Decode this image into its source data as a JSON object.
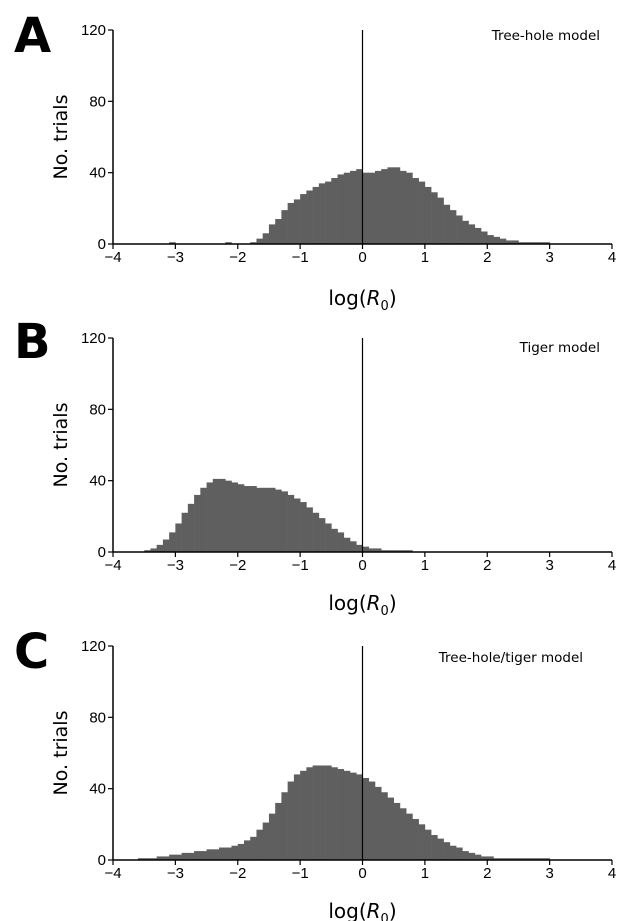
{
  "chart_data": [
    {
      "type": "bar",
      "panel_label": "A",
      "annotation": "Tree-hole model",
      "xlabel": {
        "prefix": "log(",
        "var": "R",
        "sub": "0",
        "suffix": ")"
      },
      "ylabel": "No. trials",
      "xlim": [
        -4,
        4
      ],
      "ylim": [
        0,
        120
      ],
      "xticks": [
        -4,
        -3,
        -2,
        -1,
        0,
        1,
        2,
        3,
        4
      ],
      "xtick_labels": [
        "−4",
        "−3",
        "−2",
        "−1",
        "0",
        "1",
        "2",
        "3",
        "4"
      ],
      "yticks": [
        0,
        40,
        80,
        120
      ],
      "ytick_labels": [
        "0",
        "40",
        "80",
        "120"
      ],
      "bar_color": "#5f5f5f",
      "bin_width": 0.1,
      "bin_centers": [
        -3.05,
        -2.15,
        -1.75,
        -1.65,
        -1.55,
        -1.45,
        -1.35,
        -1.25,
        -1.15,
        -1.05,
        -0.95,
        -0.85,
        -0.75,
        -0.65,
        -0.55,
        -0.45,
        -0.35,
        -0.25,
        -0.15,
        -0.05,
        0.05,
        0.15,
        0.25,
        0.35,
        0.45,
        0.55,
        0.65,
        0.75,
        0.85,
        0.95,
        1.05,
        1.15,
        1.25,
        1.35,
        1.45,
        1.55,
        1.65,
        1.75,
        1.85,
        1.95,
        2.05,
        2.15,
        2.25,
        2.35,
        2.45,
        2.55,
        2.65,
        2.75,
        2.85,
        2.95
      ],
      "values": [
        1,
        1,
        1,
        3,
        6,
        11,
        14,
        19,
        23,
        25,
        28,
        30,
        32,
        34,
        35,
        37,
        39,
        40,
        41,
        42,
        40,
        40,
        41,
        42,
        43,
        43,
        41,
        40,
        37,
        35,
        32,
        29,
        26,
        22,
        19,
        16,
        13,
        11,
        9,
        7,
        5,
        4,
        3,
        2,
        2,
        1,
        1,
        1,
        1,
        1
      ],
      "reference_line_x": 0
    },
    {
      "type": "bar",
      "panel_label": "B",
      "annotation": "Tiger model",
      "xlabel": {
        "prefix": "log(",
        "var": "R",
        "sub": "0",
        "suffix": ")"
      },
      "ylabel": "No. trials",
      "xlim": [
        -4,
        4
      ],
      "ylim": [
        0,
        120
      ],
      "xticks": [
        -4,
        -3,
        -2,
        -1,
        0,
        1,
        2,
        3,
        4
      ],
      "xtick_labels": [
        "−4",
        "−3",
        "−2",
        "−1",
        "0",
        "1",
        "2",
        "3",
        "4"
      ],
      "yticks": [
        0,
        40,
        80,
        120
      ],
      "ytick_labels": [
        "0",
        "40",
        "80",
        "120"
      ],
      "bar_color": "#5f5f5f",
      "bin_width": 0.1,
      "bin_centers": [
        -3.45,
        -3.35,
        -3.25,
        -3.15,
        -3.05,
        -2.95,
        -2.85,
        -2.75,
        -2.65,
        -2.55,
        -2.45,
        -2.35,
        -2.25,
        -2.15,
        -2.05,
        -1.95,
        -1.85,
        -1.75,
        -1.65,
        -1.55,
        -1.45,
        -1.35,
        -1.25,
        -1.15,
        -1.05,
        -0.95,
        -0.85,
        -0.75,
        -0.65,
        -0.55,
        -0.45,
        -0.35,
        -0.25,
        -0.15,
        -0.05,
        0.05,
        0.15,
        0.25,
        0.35,
        0.45,
        0.55,
        0.65,
        0.75
      ],
      "values": [
        1,
        2,
        4,
        7,
        11,
        16,
        22,
        27,
        32,
        36,
        39,
        41,
        41,
        40,
        39,
        38,
        37,
        37,
        36,
        36,
        36,
        35,
        34,
        32,
        30,
        28,
        25,
        22,
        19,
        16,
        13,
        11,
        8,
        6,
        4,
        3,
        2,
        2,
        1,
        1,
        1,
        1,
        1
      ],
      "reference_line_x": 0
    },
    {
      "type": "bar",
      "panel_label": "C",
      "annotation": "Tree-hole/tiger model",
      "xlabel": {
        "prefix": "log(",
        "var": "R",
        "sub": "0",
        "suffix": ")"
      },
      "ylabel": "No. trials",
      "xlim": [
        -4,
        4
      ],
      "ylim": [
        0,
        120
      ],
      "xticks": [
        -4,
        -3,
        -2,
        -1,
        0,
        1,
        2,
        3,
        4
      ],
      "xtick_labels": [
        "−4",
        "−3",
        "−2",
        "−1",
        "0",
        "1",
        "2",
        "3",
        "4"
      ],
      "yticks": [
        0,
        40,
        80,
        120
      ],
      "ytick_labels": [
        "0",
        "40",
        "80",
        "120"
      ],
      "bar_color": "#5f5f5f",
      "bin_width": 0.1,
      "bin_centers": [
        -3.55,
        -3.45,
        -3.35,
        -3.25,
        -3.15,
        -3.05,
        -2.95,
        -2.85,
        -2.75,
        -2.65,
        -2.55,
        -2.45,
        -2.35,
        -2.25,
        -2.15,
        -2.05,
        -1.95,
        -1.85,
        -1.75,
        -1.65,
        -1.55,
        -1.45,
        -1.35,
        -1.25,
        -1.15,
        -1.05,
        -0.95,
        -0.85,
        -0.75,
        -0.65,
        -0.55,
        -0.45,
        -0.35,
        -0.25,
        -0.15,
        -0.05,
        0.05,
        0.15,
        0.25,
        0.35,
        0.45,
        0.55,
        0.65,
        0.75,
        0.85,
        0.95,
        1.05,
        1.15,
        1.25,
        1.35,
        1.45,
        1.55,
        1.65,
        1.75,
        1.85,
        1.95,
        2.05,
        2.15,
        2.25,
        2.35,
        2.45,
        2.55,
        2.65,
        2.75,
        2.85,
        2.95
      ],
      "values": [
        1,
        1,
        1,
        2,
        2,
        3,
        3,
        4,
        4,
        5,
        5,
        6,
        6,
        7,
        7,
        8,
        9,
        11,
        13,
        17,
        21,
        26,
        32,
        38,
        44,
        48,
        50,
        52,
        53,
        53,
        53,
        52,
        51,
        50,
        49,
        48,
        46,
        44,
        41,
        38,
        35,
        32,
        29,
        26,
        23,
        20,
        17,
        14,
        12,
        10,
        8,
        7,
        5,
        4,
        3,
        2,
        2,
        1,
        1,
        1,
        1,
        1,
        1,
        1,
        1,
        1
      ],
      "reference_line_x": 0
    }
  ]
}
